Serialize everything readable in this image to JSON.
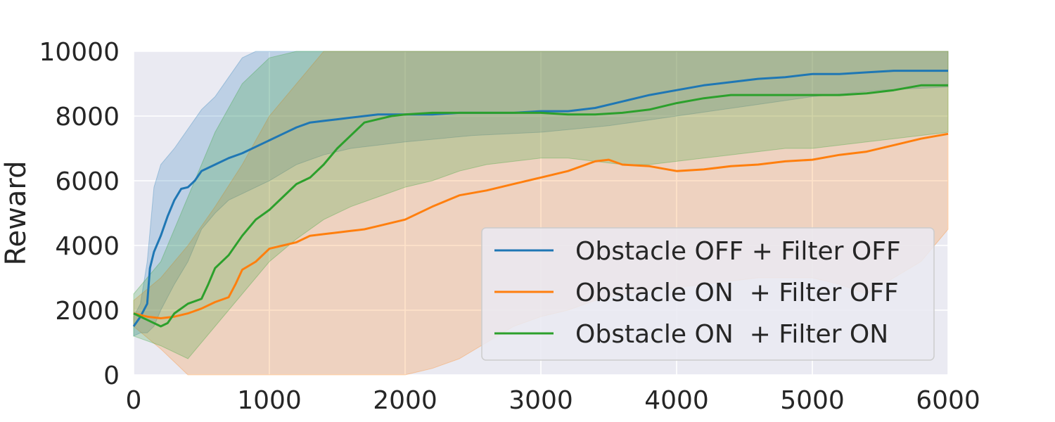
{
  "chart_data": {
    "type": "line",
    "title": "",
    "xlabel": "",
    "ylabel": "Reward",
    "xlim": [
      0,
      6000
    ],
    "ylim": [
      0,
      10000
    ],
    "x_ticks": [
      0,
      1000,
      2000,
      3000,
      4000,
      5000,
      6000
    ],
    "y_ticks": [
      0,
      2000,
      4000,
      6000,
      8000,
      10000
    ],
    "grid": true,
    "legend_position": "lower-right",
    "background": "#eaeaf2",
    "series": [
      {
        "name": "Obstacle OFF + Filter OFF",
        "color": "#1f77b4",
        "mean": {
          "x": [
            0,
            50,
            100,
            120,
            150,
            200,
            250,
            300,
            350,
            400,
            450,
            500,
            600,
            700,
            800,
            900,
            1000,
            1100,
            1200,
            1300,
            1400,
            1500,
            1600,
            1700,
            1800,
            1900,
            2000,
            2200,
            2400,
            2600,
            2800,
            3000,
            3200,
            3400,
            3600,
            3800,
            4000,
            4200,
            4400,
            4600,
            4800,
            5000,
            5200,
            5400,
            5600,
            5800,
            6000
          ],
          "y": [
            1500,
            1800,
            2200,
            3300,
            3800,
            4300,
            4900,
            5400,
            5750,
            5800,
            6000,
            6300,
            6500,
            6700,
            6850,
            7050,
            7250,
            7450,
            7650,
            7800,
            7850,
            7900,
            7950,
            8000,
            8050,
            8050,
            8050,
            8050,
            8100,
            8100,
            8100,
            8150,
            8150,
            8250,
            8450,
            8650,
            8800,
            8950,
            9050,
            9150,
            9200,
            9300,
            9300,
            9350,
            9400,
            9400,
            9400
          ]
        },
        "band": {
          "x": [
            0,
            50,
            100,
            150,
            200,
            300,
            400,
            500,
            600,
            700,
            800,
            900,
            1000,
            1200,
            1400,
            1600,
            2000,
            2500,
            3000,
            3500,
            4000,
            4500,
            5000,
            5500,
            6000
          ],
          "lower": [
            1200,
            1300,
            1300,
            1500,
            2000,
            2800,
            3500,
            4500,
            5000,
            5400,
            5600,
            5800,
            6000,
            6500,
            6800,
            7000,
            7200,
            7400,
            7500,
            7700,
            8000,
            8300,
            8600,
            8800,
            8900
          ],
          "upper": [
            1800,
            2200,
            3500,
            5800,
            6500,
            7000,
            7600,
            8200,
            8600,
            9200,
            9800,
            10000,
            10000,
            10000,
            10000,
            10000,
            10000,
            10000,
            10000,
            10000,
            10000,
            10000,
            10000,
            10000,
            10000
          ]
        }
      },
      {
        "name": "Obstacle ON  + Filter OFF",
        "color": "#ff7f0e",
        "mean": {
          "x": [
            0,
            100,
            200,
            300,
            400,
            500,
            600,
            700,
            750,
            800,
            900,
            1000,
            1100,
            1200,
            1300,
            1400,
            1500,
            1600,
            1700,
            1800,
            1900,
            2000,
            2200,
            2400,
            2600,
            2800,
            3000,
            3200,
            3400,
            3500,
            3600,
            3800,
            4000,
            4200,
            4400,
            4600,
            4800,
            5000,
            5200,
            5400,
            5600,
            5800,
            6000
          ],
          "y": [
            1900,
            1800,
            1750,
            1800,
            1900,
            2050,
            2250,
            2400,
            2800,
            3250,
            3500,
            3900,
            4000,
            4100,
            4300,
            4350,
            4400,
            4450,
            4500,
            4600,
            4700,
            4800,
            5200,
            5550,
            5700,
            5900,
            6100,
            6300,
            6600,
            6650,
            6500,
            6450,
            6300,
            6350,
            6450,
            6500,
            6600,
            6650,
            6800,
            6900,
            7100,
            7300,
            7450
          ]
        },
        "band": {
          "x": [
            0,
            200,
            400,
            600,
            800,
            1000,
            1200,
            1400,
            1600,
            1800,
            2000,
            2200,
            2400,
            2600,
            2800,
            3000,
            3200,
            3400,
            3600,
            3800,
            4000,
            4200,
            4400,
            4600,
            4800,
            5000,
            5200,
            5400,
            5600,
            5800,
            6000
          ],
          "lower": [
            1500,
            800,
            0,
            0,
            0,
            0,
            0,
            0,
            0,
            0,
            0,
            200,
            500,
            1000,
            1500,
            1800,
            2000,
            2300,
            2500,
            2600,
            2700,
            2800,
            2900,
            3000,
            3000,
            3000,
            2800,
            2500,
            3000,
            3500,
            4500
          ],
          "upper": [
            2300,
            3000,
            4000,
            5200,
            6500,
            8000,
            9000,
            10000,
            10000,
            10000,
            10000,
            10000,
            10000,
            10000,
            10000,
            10000,
            10000,
            10000,
            10000,
            10000,
            10000,
            10000,
            10000,
            10000,
            10000,
            10000,
            10000,
            10000,
            10000,
            10000,
            10000
          ]
        }
      },
      {
        "name": "Obstacle ON  + Filter ON",
        "color": "#2ca02c",
        "mean": {
          "x": [
            0,
            100,
            200,
            250,
            300,
            400,
            500,
            550,
            600,
            700,
            800,
            900,
            1000,
            1100,
            1200,
            1300,
            1400,
            1500,
            1600,
            1700,
            1800,
            1900,
            2000,
            2200,
            2400,
            2600,
            2800,
            3000,
            3200,
            3400,
            3600,
            3800,
            4000,
            4200,
            4400,
            4600,
            4800,
            5000,
            5200,
            5400,
            5600,
            5800,
            6000
          ],
          "y": [
            1900,
            1700,
            1500,
            1600,
            1900,
            2200,
            2350,
            2800,
            3300,
            3700,
            4300,
            4800,
            5100,
            5500,
            5900,
            6100,
            6500,
            7000,
            7400,
            7800,
            7900,
            8000,
            8050,
            8100,
            8100,
            8100,
            8100,
            8100,
            8050,
            8050,
            8100,
            8200,
            8400,
            8550,
            8650,
            8650,
            8650,
            8650,
            8650,
            8700,
            8800,
            8950,
            8950
          ]
        },
        "band": {
          "x": [
            0,
            200,
            400,
            600,
            800,
            1000,
            1200,
            1400,
            1600,
            1800,
            2000,
            2200,
            2400,
            2600,
            2800,
            3000,
            3200,
            3400,
            3600,
            3800,
            4000,
            4200,
            4400,
            4600,
            4800,
            5000,
            5200,
            5400,
            5600,
            5800,
            6000
          ],
          "lower": [
            1200,
            900,
            500,
            1500,
            2500,
            3500,
            4200,
            4800,
            5200,
            5500,
            5800,
            6000,
            6300,
            6500,
            6600,
            6700,
            6700,
            6600,
            6500,
            6500,
            6600,
            6700,
            6800,
            6900,
            7000,
            7000,
            7100,
            7200,
            7300,
            7400,
            7500
          ],
          "upper": [
            2500,
            3500,
            5500,
            7500,
            9000,
            9800,
            10000,
            10000,
            10000,
            10000,
            10000,
            10000,
            10000,
            10000,
            10000,
            10000,
            10000,
            10000,
            10000,
            10000,
            10000,
            10000,
            10000,
            10000,
            10000,
            10000,
            10000,
            10000,
            10000,
            10000,
            10000
          ]
        }
      }
    ]
  }
}
